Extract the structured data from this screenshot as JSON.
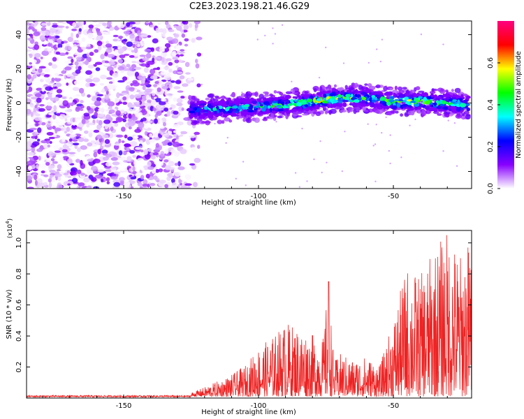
{
  "title": "C2E3.2023.198.21.46.G29",
  "chart_data": [
    {
      "type": "heatmap",
      "xlabel": "Height of straight line (km)",
      "ylabel": "Frequency (Hz)",
      "xlim": [
        -186,
        -21
      ],
      "ylim": [
        -50,
        48
      ],
      "xticks": [
        -150,
        -100,
        -50
      ],
      "yticks": [
        -40,
        -20,
        0,
        20,
        40
      ],
      "colorbar": {
        "label": "Normalized spectral amplitude",
        "range": [
          0,
          0.8
        ],
        "ticks": [
          0.0,
          0.2,
          0.4,
          0.6
        ],
        "colors": [
          "#ffffff",
          "#8800ff",
          "#0000ff",
          "#00ffff",
          "#00ff00",
          "#ffff00",
          "#ff0000",
          "#ff0080"
        ]
      },
      "noise_region_x": [
        -186,
        -128
      ],
      "signal_band": {
        "x": [
          -126,
          -110,
          -100,
          -90,
          -80,
          -75,
          -70,
          -60,
          -50,
          -40,
          -30,
          -22
        ],
        "center_freq": [
          -4,
          -3,
          -2,
          -1,
          1,
          2,
          3,
          3,
          1,
          1,
          0,
          -1
        ],
        "peak_amplitude": [
          0.35,
          0.45,
          0.5,
          0.55,
          0.6,
          0.75,
          0.6,
          0.55,
          0.7,
          0.6,
          0.55,
          0.5
        ]
      }
    },
    {
      "type": "line",
      "xlabel": "Height of straight line (km)",
      "ylabel": "SNR (10 * v/v)",
      "y_multiplier": "(x10",
      "y_multiplier_exp": "4",
      "y_multiplier_close": ")",
      "xlim": [
        -186,
        -21
      ],
      "ylim": [
        0,
        1.08
      ],
      "xticks": [
        -150,
        -100,
        -50
      ],
      "yticks": [
        0.2,
        0.4,
        0.6,
        0.8,
        1.0
      ],
      "color": "#ee2222",
      "series": [
        {
          "x": [
            -186,
            -175,
            -165,
            -150,
            -140,
            -130,
            -125,
            -120,
            -115,
            -110,
            -105,
            -100,
            -95,
            -90,
            -85,
            -80,
            -76,
            -74,
            -72,
            -70,
            -65,
            -60,
            -55,
            -50,
            -45,
            -40,
            -35,
            -30,
            -25,
            -21
          ],
          "envelope": [
            0.015,
            0.015,
            0.015,
            0.015,
            0.015,
            0.02,
            0.025,
            0.06,
            0.1,
            0.14,
            0.2,
            0.32,
            0.38,
            0.48,
            0.45,
            0.4,
            0.38,
            0.75,
            0.22,
            0.28,
            0.24,
            0.26,
            0.2,
            0.5,
            0.85,
            0.78,
            0.95,
            1.08,
            0.92,
            1.06
          ]
        }
      ]
    }
  ]
}
